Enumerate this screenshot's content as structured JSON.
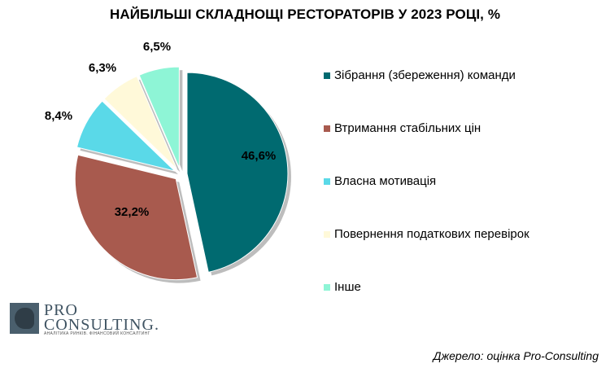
{
  "chart_data": {
    "type": "pie",
    "title": "НАЙБІЛЬШІ СКЛАДНОЩІ РЕСТОРАТОРІВ У 2023 РОЦІ, %",
    "categories": [
      "Зібрання (збереження) команди",
      "Втримання стабільних цін",
      "Власна мотивація",
      "Повернення податкових перевірок",
      "Інше"
    ],
    "values": [
      46.6,
      32.2,
      8.4,
      6.3,
      6.5
    ],
    "data_labels": [
      "46,6%",
      "32,2%",
      "8,4%",
      "6,3%",
      "6,5%"
    ],
    "colors": [
      "#006a70",
      "#a85a4e",
      "#5ad9e8",
      "#fff9d9",
      "#8ef5d6"
    ],
    "legend_position": "right",
    "exploded": true
  },
  "logo": {
    "line1": "PRO",
    "line2": "CONSULTING.",
    "tagline": "АНАЛІТИКА РИНКІВ. ФІНАНСОВИЙ КОНСАЛТИНГ"
  },
  "source": "Джерело: оцінка Pro-Consulting"
}
